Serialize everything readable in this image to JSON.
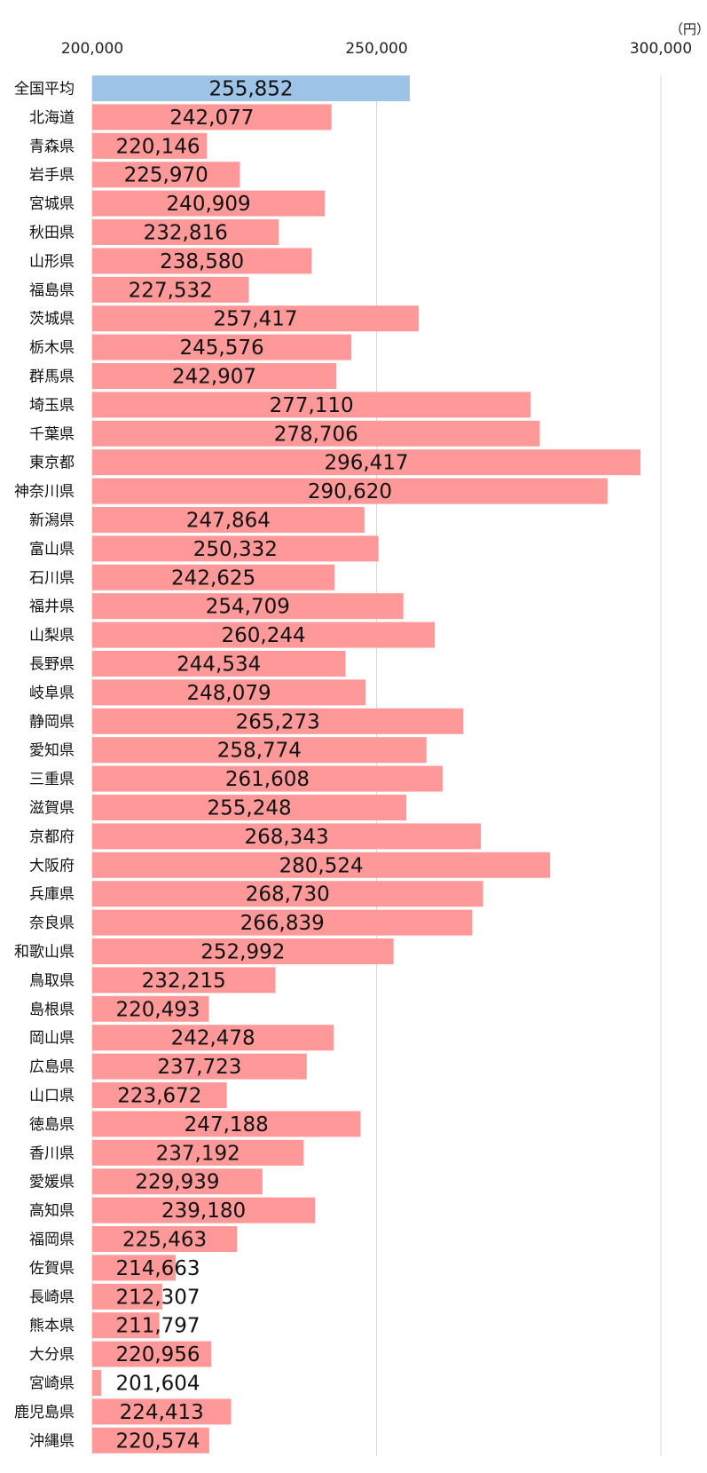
{
  "chart_data": {
    "type": "bar",
    "orientation": "horizontal",
    "unit_label": "（円）",
    "xlim": [
      200000,
      300000
    ],
    "ticks": [
      200000,
      250000,
      300000
    ],
    "tick_labels": [
      "200,000",
      "250,000",
      "300,000"
    ],
    "grid": true,
    "colors": {
      "highlight": "#9dc3e6",
      "default": "#ff9999"
    },
    "categories": [
      "全国平均",
      "北海道",
      "青森県",
      "岩手県",
      "宮城県",
      "秋田県",
      "山形県",
      "福島県",
      "茨城県",
      "栃木県",
      "群馬県",
      "埼玉県",
      "千葉県",
      "東京都",
      "神奈川県",
      "新潟県",
      "富山県",
      "石川県",
      "福井県",
      "山梨県",
      "長野県",
      "岐阜県",
      "静岡県",
      "愛知県",
      "三重県",
      "滋賀県",
      "京都府",
      "大阪府",
      "兵庫県",
      "奈良県",
      "和歌山県",
      "鳥取県",
      "島根県",
      "岡山県",
      "広島県",
      "山口県",
      "徳島県",
      "香川県",
      "愛媛県",
      "高知県",
      "福岡県",
      "佐賀県",
      "長崎県",
      "熊本県",
      "大分県",
      "宮崎県",
      "鹿児島県",
      "沖縄県"
    ],
    "values": [
      255852,
      242077,
      220146,
      225970,
      240909,
      232816,
      238580,
      227532,
      257417,
      245576,
      242907,
      277110,
      278706,
      296417,
      290620,
      247864,
      250332,
      242625,
      254709,
      260244,
      244534,
      248079,
      265273,
      258774,
      261608,
      255248,
      268343,
      280524,
      268730,
      266839,
      252992,
      232215,
      220493,
      242478,
      237723,
      223672,
      247188,
      237192,
      229939,
      239180,
      225463,
      214663,
      212307,
      211797,
      220956,
      201604,
      224413,
      220574
    ],
    "value_labels": [
      "255,852",
      "242,077",
      "220,146",
      "225,970",
      "240,909",
      "232,816",
      "238,580",
      "227,532",
      "257,417",
      "245,576",
      "242,907",
      "277,110",
      "278,706",
      "296,417",
      "290,620",
      "247,864",
      "250,332",
      "242,625",
      "254,709",
      "260,244",
      "244,534",
      "248,079",
      "265,273",
      "258,774",
      "261,608",
      "255,248",
      "268,343",
      "280,524",
      "268,730",
      "266,839",
      "252,992",
      "232,215",
      "220,493",
      "242,478",
      "237,723",
      "223,672",
      "247,188",
      "237,192",
      "229,939",
      "239,180",
      "225,463",
      "214,663",
      "212,307",
      "211,797",
      "220,956",
      "201,604",
      "224,413",
      "220,574"
    ],
    "highlight_index": 0
  }
}
